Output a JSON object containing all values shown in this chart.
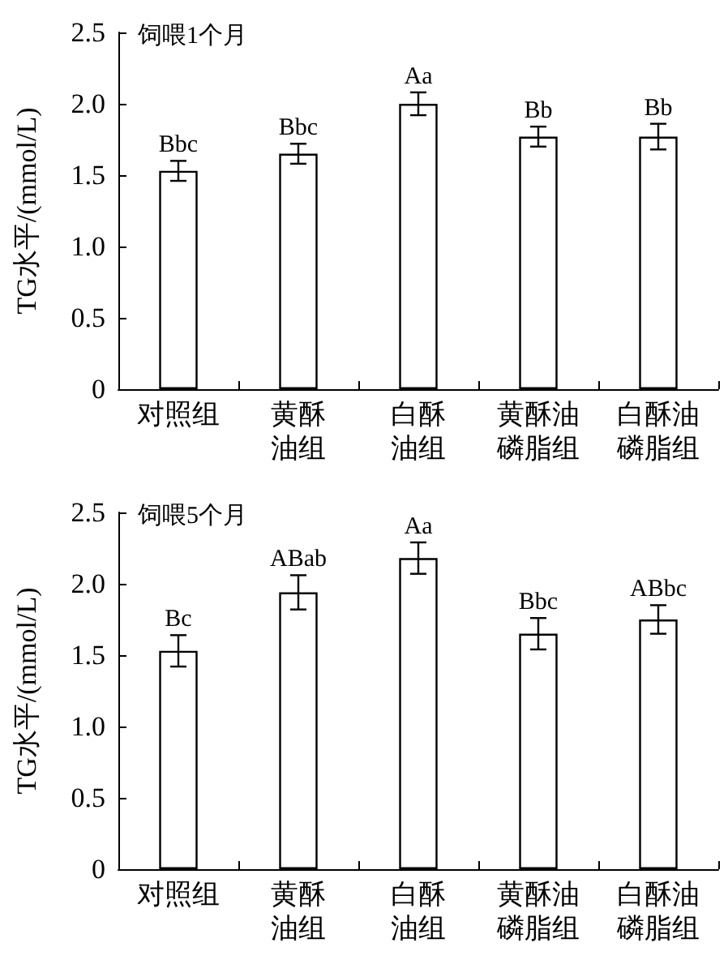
{
  "chart_data": [
    {
      "type": "bar",
      "title": "饲喂1个月",
      "ylabel": "TG水平/(mmol/L)",
      "categories": [
        "对照组",
        "黄酥油组",
        "白酥油组",
        "黄酥油磷脂组",
        "白酥油磷脂组"
      ],
      "values": [
        1.53,
        1.65,
        2.0,
        1.77,
        1.77
      ],
      "errors": [
        0.07,
        0.07,
        0.08,
        0.07,
        0.09
      ],
      "color": "#ffffff",
      "ylim": [
        0,
        2.5
      ],
      "yticks": [
        0,
        {
          "value": 0.5,
          "label": "0.5"
        },
        {
          "value": 1,
          "label": "1.0"
        },
        {
          "value": 1.5,
          "label": "1.5"
        },
        {
          "value": 2,
          "label": "2.0"
        },
        {
          "value": 2.5,
          "label": "2.5"
        }
      ],
      "grid": false,
      "annotations": [
        {
          "text": "Bbc",
          "x": "对照组",
          "y": 1.6
        },
        {
          "text": "Bbc",
          "x": "黄酥油组",
          "y": 1.72
        },
        {
          "text": "Aa",
          "x": "白酥油组",
          "y": 2.08
        },
        {
          "text": "Bb",
          "x": "黄酥油磷脂组",
          "y": 1.84
        },
        {
          "text": "Bb",
          "x": "白酥油磷脂组",
          "y": 1.86
        }
      ]
    },
    {
      "type": "bar",
      "title": "饲喂5个月",
      "ylabel": "TG水平/(mmol/L)",
      "categories": [
        "对照组",
        "黄酥油组",
        "白酥油组",
        "黄酥油磷脂组",
        "白酥油磷脂组"
      ],
      "values": [
        1.53,
        1.94,
        2.18,
        1.65,
        1.75
      ],
      "errors": [
        0.11,
        0.12,
        0.11,
        0.11,
        0.1
      ],
      "color": "#ffffff",
      "ylim": [
        0,
        2.5
      ],
      "yticks": [
        0,
        {
          "value": 0.5,
          "label": "0.5"
        },
        {
          "value": 1,
          "label": "1.0"
        },
        {
          "value": 1.5,
          "label": "1.5"
        },
        {
          "value": 2,
          "label": "2.0"
        },
        {
          "value": 2.5,
          "label": "2.5"
        }
      ],
      "grid": false,
      "annotations": [
        {
          "text": "Bc",
          "x": "对照组",
          "y": 1.64
        },
        {
          "text": "ABab",
          "x": "黄酥油组",
          "y": 2.06
        },
        {
          "text": "Aa",
          "x": "白酥油组",
          "y": 2.29
        },
        {
          "text": "Bbc",
          "x": "黄酥油磷脂组",
          "y": 1.76
        },
        {
          "text": "ABbc",
          "x": "白酥油磷脂组",
          "y": 1.85
        }
      ]
    }
  ]
}
